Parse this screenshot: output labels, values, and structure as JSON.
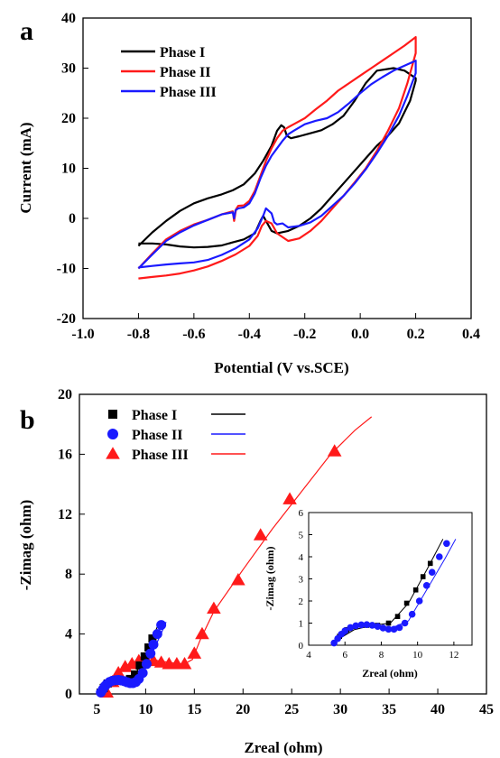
{
  "panels": {
    "a": {
      "label": "a"
    },
    "b": {
      "label": "b"
    }
  },
  "chart_data": [
    {
      "panel": "a",
      "type": "line",
      "title": "",
      "xlabel": "Potential (V vs.SCE)",
      "ylabel": "Current (mA)",
      "xlim": [
        -1.0,
        0.4
      ],
      "ylim": [
        -20,
        40
      ],
      "xticks": [
        "-1.0",
        "-0.8",
        "-0.6",
        "-0.4",
        "-0.2",
        "0.0",
        "0.2",
        "0.4"
      ],
      "yticks": [
        "-20",
        "-10",
        "0",
        "10",
        "20",
        "30",
        "40"
      ],
      "legend_position": "top-left",
      "series": [
        {
          "name": "Phase I",
          "color": "#000000",
          "x": [
            -0.8,
            -0.75,
            -0.7,
            -0.65,
            -0.6,
            -0.55,
            -0.5,
            -0.46,
            -0.42,
            -0.38,
            -0.35,
            -0.32,
            -0.3,
            -0.285,
            -0.275,
            -0.265,
            -0.25,
            -0.22,
            -0.18,
            -0.14,
            -0.1,
            -0.06,
            -0.02,
            0.02,
            0.06,
            0.12,
            0.16,
            0.2,
            0.2,
            0.18,
            0.14,
            0.1,
            0.06,
            0.02,
            -0.02,
            -0.06,
            -0.1,
            -0.14,
            -0.18,
            -0.22,
            -0.26,
            -0.3,
            -0.32,
            -0.335,
            -0.35,
            -0.36,
            -0.38,
            -0.42,
            -0.46,
            -0.5,
            -0.55,
            -0.6,
            -0.65,
            -0.7,
            -0.75,
            -0.8
          ],
          "y": [
            -5.5,
            -2.8,
            -0.5,
            1.5,
            3.0,
            4.0,
            4.8,
            5.6,
            6.8,
            9.0,
            11.5,
            14.5,
            17.5,
            18.6,
            18.2,
            16.5,
            16.0,
            16.4,
            17.0,
            17.6,
            18.8,
            20.5,
            23.5,
            27.0,
            29.5,
            30.0,
            29.5,
            28.0,
            27.5,
            23.5,
            19.0,
            16.5,
            14.5,
            12.0,
            9.5,
            7.0,
            4.5,
            2.0,
            0.0,
            -1.5,
            -2.5,
            -3.0,
            -2.5,
            -1.0,
            0.5,
            -0.5,
            -3.0,
            -4.2,
            -4.8,
            -5.4,
            -5.7,
            -5.8,
            -5.6,
            -5.2,
            -5.0,
            -5.0
          ]
        },
        {
          "name": "Phase II",
          "color": "#ff1a1a",
          "x": [
            -0.8,
            -0.75,
            -0.7,
            -0.65,
            -0.6,
            -0.55,
            -0.5,
            -0.46,
            -0.455,
            -0.448,
            -0.44,
            -0.42,
            -0.4,
            -0.38,
            -0.36,
            -0.34,
            -0.32,
            -0.3,
            -0.28,
            -0.26,
            -0.24,
            -0.2,
            -0.16,
            -0.12,
            -0.08,
            -0.04,
            0.0,
            0.04,
            0.08,
            0.12,
            0.16,
            0.2,
            0.2,
            0.17,
            0.14,
            0.1,
            0.06,
            0.02,
            -0.02,
            -0.06,
            -0.1,
            -0.14,
            -0.18,
            -0.22,
            -0.26,
            -0.3,
            -0.32,
            -0.34,
            -0.355,
            -0.37,
            -0.4,
            -0.45,
            -0.5,
            -0.55,
            -0.6,
            -0.65,
            -0.7,
            -0.75,
            -0.8
          ],
          "y": [
            -10.0,
            -7.0,
            -4.2,
            -2.5,
            -1.2,
            -0.3,
            0.8,
            1.4,
            -0.5,
            1.8,
            2.5,
            2.6,
            3.5,
            5.5,
            8.5,
            11.5,
            14.0,
            16.0,
            17.5,
            18.2,
            18.8,
            20.0,
            21.8,
            23.5,
            25.5,
            27.0,
            28.5,
            30.0,
            31.5,
            33.0,
            34.5,
            36.2,
            33.0,
            27.0,
            22.0,
            17.5,
            13.5,
            10.0,
            7.2,
            4.5,
            2.0,
            -0.5,
            -2.5,
            -4.0,
            -4.5,
            -3.0,
            -1.0,
            -0.5,
            -1.5,
            -3.5,
            -5.5,
            -7.2,
            -8.5,
            -9.6,
            -10.4,
            -11.0,
            -11.4,
            -11.7,
            -12.0
          ]
        },
        {
          "name": "Phase III",
          "color": "#1a1aff",
          "x": [
            -0.8,
            -0.75,
            -0.7,
            -0.65,
            -0.6,
            -0.55,
            -0.5,
            -0.46,
            -0.455,
            -0.45,
            -0.44,
            -0.42,
            -0.4,
            -0.38,
            -0.36,
            -0.34,
            -0.32,
            -0.3,
            -0.28,
            -0.26,
            -0.24,
            -0.2,
            -0.16,
            -0.12,
            -0.08,
            -0.04,
            0.0,
            0.04,
            0.08,
            0.12,
            0.16,
            0.2,
            0.2,
            0.17,
            0.14,
            0.1,
            0.06,
            0.02,
            -0.02,
            -0.06,
            -0.1,
            -0.14,
            -0.18,
            -0.22,
            -0.26,
            -0.28,
            -0.3,
            -0.31,
            -0.32,
            -0.33,
            -0.34,
            -0.35,
            -0.37,
            -0.4,
            -0.45,
            -0.5,
            -0.55,
            -0.6,
            -0.65,
            -0.7,
            -0.75,
            -0.8
          ],
          "y": [
            -10.0,
            -7.2,
            -4.5,
            -2.8,
            -1.4,
            -0.3,
            0.8,
            1.2,
            0.0,
            1.6,
            2.0,
            2.2,
            3.0,
            5.0,
            8.0,
            10.5,
            12.5,
            14.0,
            15.5,
            16.8,
            17.5,
            18.8,
            19.5,
            20.0,
            21.2,
            23.0,
            25.0,
            26.8,
            28.2,
            29.5,
            30.5,
            31.5,
            29.0,
            24.5,
            20.5,
            16.5,
            13.0,
            9.8,
            7.0,
            4.5,
            2.5,
            0.5,
            -0.8,
            -1.5,
            -1.8,
            -1.0,
            -1.2,
            -0.8,
            1.0,
            1.5,
            2.0,
            0.5,
            -2.0,
            -4.2,
            -6.0,
            -7.3,
            -8.3,
            -8.8,
            -9.0,
            -9.2,
            -9.5,
            -9.8
          ]
        }
      ]
    },
    {
      "panel": "b",
      "type": "scatter",
      "title": "",
      "xlabel": "Zreal (ohm)",
      "ylabel": "-Zimag (ohm)",
      "xlim": [
        3.2,
        45
      ],
      "ylim": [
        0,
        20
      ],
      "xticks": [
        "5",
        "10",
        "15",
        "20",
        "25",
        "30",
        "35",
        "40",
        "45"
      ],
      "yticks": [
        "0",
        "4",
        "8",
        "12",
        "16",
        "20"
      ],
      "legend_position": "top-left",
      "series": [
        {
          "name": "Phase I",
          "marker": "square",
          "color": "#000000",
          "x": [
            5.7,
            6.1,
            6.6,
            7.2,
            7.8,
            8.4,
            8.9,
            9.4,
            9.9,
            10.3,
            10.7
          ],
          "y": [
            0.4,
            0.7,
            0.85,
            0.9,
            0.9,
            1.0,
            1.3,
            1.9,
            2.5,
            3.1,
            3.7
          ],
          "fit_x": [
            5.4,
            6.5,
            7.5,
            8.5,
            9.5,
            10.5,
            11.4
          ],
          "fit_y": [
            0.15,
            0.7,
            0.9,
            1.0,
            1.9,
            3.4,
            4.8
          ]
        },
        {
          "name": "Phase II",
          "marker": "circle",
          "color": "#1a1aff",
          "x": [
            5.4,
            5.6,
            5.8,
            6.0,
            6.3,
            6.6,
            6.9,
            7.2,
            7.5,
            7.8,
            8.1,
            8.4,
            8.7,
            9.0,
            9.3,
            9.7,
            10.1,
            10.5,
            10.8,
            11.2,
            11.6
          ],
          "y": [
            0.1,
            0.3,
            0.5,
            0.65,
            0.8,
            0.88,
            0.92,
            0.93,
            0.9,
            0.85,
            0.78,
            0.72,
            0.72,
            0.8,
            1.0,
            1.4,
            2.0,
            2.7,
            3.3,
            4.0,
            4.6
          ],
          "fit_x": [
            5.3,
            6.5,
            7.5,
            8.5,
            9.5,
            10.5,
            11.5,
            12.1
          ],
          "fit_y": [
            0.05,
            0.8,
            0.93,
            0.75,
            1.1,
            2.5,
            3.9,
            4.8
          ]
        },
        {
          "name": "Phase III",
          "marker": "triangle",
          "color": "#ff1a1a",
          "x": [
            6.0,
            6.6,
            7.2,
            7.9,
            8.6,
            9.3,
            10.0,
            10.8,
            11.6,
            12.4,
            13.2,
            14.0,
            15.0,
            15.8,
            17.0,
            19.5,
            21.8,
            24.8,
            29.4
          ],
          "y": [
            0.1,
            0.8,
            1.4,
            1.8,
            2.0,
            2.2,
            2.3,
            2.2,
            2.1,
            2.0,
            2.0,
            2.0,
            2.7,
            4.0,
            5.7,
            7.6,
            10.6,
            13.0,
            16.2
          ],
          "fit_x": [
            5.8,
            7,
            8,
            9,
            10,
            11,
            12,
            13,
            14,
            14.8,
            15.6,
            17,
            20,
            23,
            26,
            29,
            31.5,
            33.2
          ],
          "fit_y": [
            0.0,
            1.3,
            1.85,
            2.1,
            2.25,
            2.25,
            2.15,
            2.05,
            2.0,
            2.3,
            3.6,
            5.5,
            8.3,
            11.0,
            13.5,
            16.0,
            17.6,
            18.5
          ]
        }
      ],
      "inset": {
        "xlabel": "Zreal (ohm)",
        "ylabel": "-Zimag (ohm)",
        "xlim": [
          4,
          13
        ],
        "ylim": [
          0,
          6
        ],
        "xticks": [
          "4",
          "6",
          "8",
          "10",
          "12"
        ],
        "yticks": [
          "0",
          "1",
          "2",
          "3",
          "4",
          "5",
          "6"
        ],
        "series_refs": [
          "Phase I",
          "Phase II"
        ]
      }
    }
  ]
}
